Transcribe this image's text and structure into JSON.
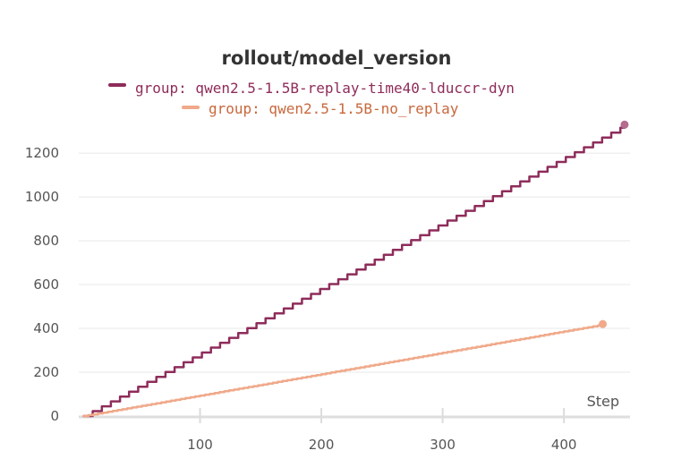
{
  "chart_data": {
    "type": "line",
    "title": "rollout/model_version",
    "xlabel": "Step",
    "ylabel": "",
    "xlim": [
      0,
      455
    ],
    "ylim": [
      0,
      1320
    ],
    "x_ticks": [
      100,
      200,
      300,
      400
    ],
    "y_ticks": [
      0,
      200,
      400,
      600,
      800,
      1000,
      1200
    ],
    "grid": true,
    "legend_position": "top-center",
    "series": [
      {
        "name": "group: qwen2.5-1.5B-replay-time40-lduccr-dyn",
        "color": "#8e2c5a",
        "shape": "staircase",
        "x_start": 4,
        "x_end": 450,
        "step_every": 7.5,
        "y_increment": 22.3,
        "y_end": 1330
      },
      {
        "name": "group: qwen2.5-1.5B-no_replay",
        "color": "#f0a98a",
        "shape": "staircase",
        "x_start": 4,
        "x_end": 432,
        "step_every": 4,
        "y_increment": 3.9,
        "y_end": 420
      }
    ]
  }
}
